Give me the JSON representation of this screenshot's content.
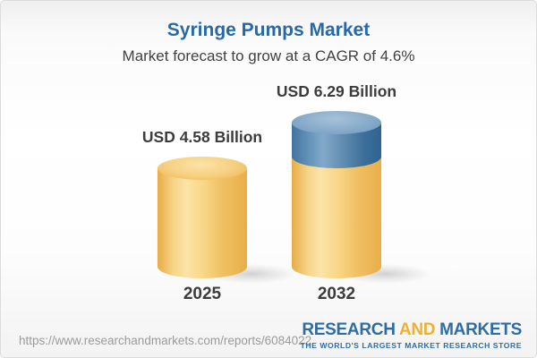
{
  "header": {
    "title": "Syringe Pumps Market",
    "subtitle": "Market forecast to grow at a CAGR of 4.6%"
  },
  "chart_data": {
    "type": "bar",
    "bar_style": "3d-cylinder-stacked",
    "title": "Syringe Pumps Market",
    "subtitle": "Market forecast to grow at a CAGR of 4.6%",
    "categories": [
      "2025",
      "2032"
    ],
    "values": [
      4.58,
      6.29
    ],
    "value_labels": [
      "USD 4.58 Billion",
      "USD 6.29 Billion"
    ],
    "unit": "USD Billion",
    "cagr_pct": 4.6,
    "series_description": "2032 bar is drawn as the 2025 base (gold) with forecast growth segment (blue) stacked on top",
    "colors": {
      "base_segment": "#F5CE7B",
      "base_segment_edge": "#E9AE49",
      "growth_segment": "#6F9CC0",
      "growth_segment_edge": "#2F6390",
      "label_text": "#3C3C3C"
    },
    "legend": null,
    "grid": false
  },
  "footer": {
    "url": "https://www.researchandmarkets.com/reports/6084022",
    "logo": {
      "word1": "RESEARCH",
      "word2": "AND",
      "word3": "MARKETS",
      "tagline": "THE WORLD'S LARGEST MARKET RESEARCH STORE",
      "blue": "#2E6DA4",
      "orange": "#F0B02F"
    }
  },
  "theme": {
    "title_color": "#2769A8",
    "subtitle_color": "#414141",
    "url_color": "#9B9B9B"
  }
}
